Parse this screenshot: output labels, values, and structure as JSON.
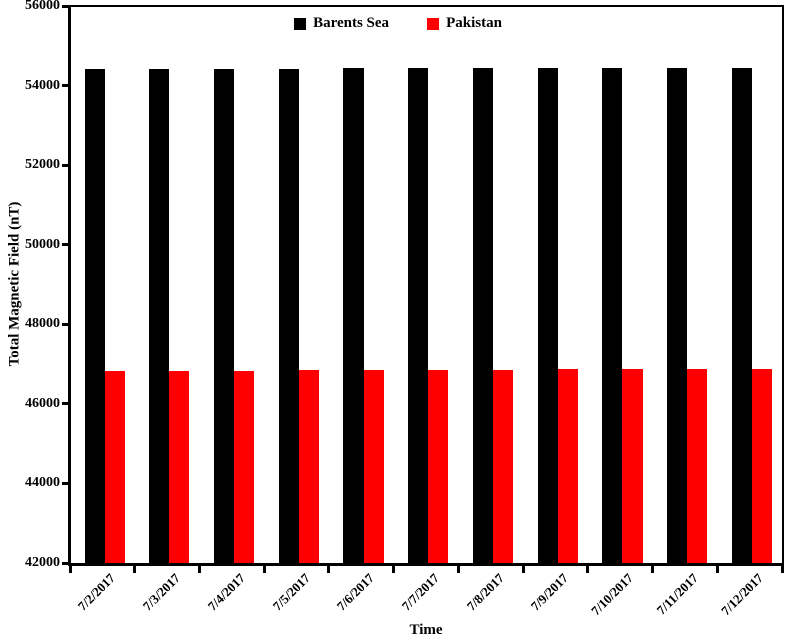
{
  "chart_data": {
    "type": "bar",
    "title": "",
    "xlabel": "Time",
    "ylabel": "Total Magnetic Field (nT)",
    "categories": [
      "7/2/2017",
      "7/3/2017",
      "7/4/2017",
      "7/5/2017",
      "7/6/2017",
      "7/7/2017",
      "7/8/2017",
      "7/9/2017",
      "7/10/2017",
      "7/11/2017",
      "7/12/2017"
    ],
    "series": [
      {
        "name": "Barents Sea",
        "color": "#000000",
        "values": [
          54420,
          54420,
          54425,
          54425,
          54430,
          54430,
          54430,
          54435,
          54440,
          54440,
          54445
        ]
      },
      {
        "name": "Pakistan",
        "color": "#ff0000",
        "values": [
          46820,
          46825,
          46835,
          46840,
          46850,
          46855,
          46860,
          46865,
          46870,
          46875,
          46885
        ]
      }
    ],
    "ylim": [
      42000,
      56000
    ],
    "y_major_step": 2000,
    "y_ticks": [
      56000,
      54000,
      52000,
      50000,
      48000,
      46000,
      44000,
      42000
    ],
    "bar_baseline": 42000,
    "grid": false,
    "legend_position": "top-center"
  }
}
